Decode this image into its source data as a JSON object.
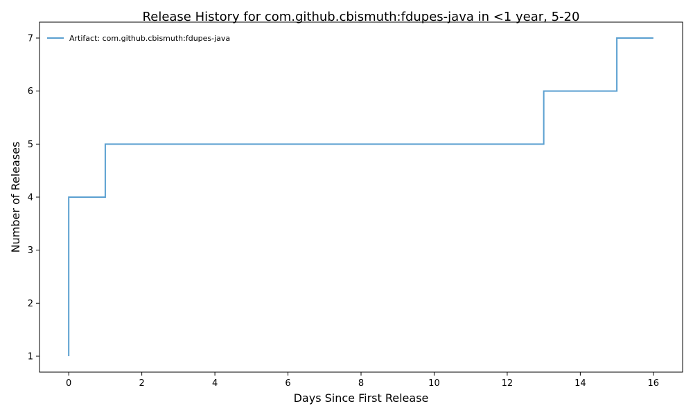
{
  "chart_data": {
    "type": "line",
    "title": "Release History for com.github.cbismuth:fdupes-java in <1 year, 5-20",
    "xlabel": "Days Since First Release",
    "ylabel": "Number of Releases",
    "xlim": [
      -0.8,
      16.8
    ],
    "ylim": [
      0.7,
      7.3
    ],
    "xticks": [
      0,
      2,
      4,
      6,
      8,
      10,
      12,
      14,
      16
    ],
    "yticks": [
      1,
      2,
      3,
      4,
      5,
      6,
      7
    ],
    "grid": false,
    "legend_position": "top-left",
    "step": "post",
    "series": [
      {
        "name": "Artifact: com.github.cbismuth:fdupes-java",
        "color": "#5a9fd0",
        "x": [
          0,
          0,
          0,
          0,
          1,
          13,
          15,
          16
        ],
        "y": [
          1,
          2,
          3,
          4,
          5,
          6,
          7,
          7
        ]
      }
    ]
  }
}
